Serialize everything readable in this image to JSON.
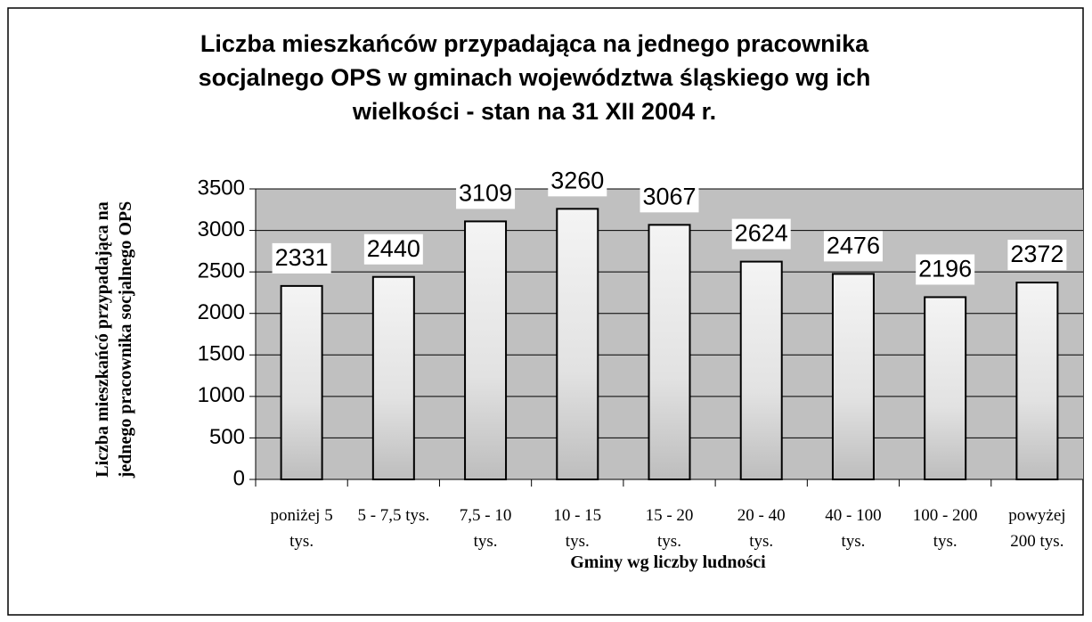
{
  "chart_data": {
    "type": "bar",
    "title": "Liczba mieszkańców przypadająca na jednego pracownika socjalnego OPS w gminach województwa śląskiego wg ich wielkości - stan na 31 XII 2004 r.",
    "y_label": "Liczba mieszkańcó przypadająca na jednego pracownika socjalnego OPS",
    "x_label": "Gminy wg liczby ludności",
    "categories": [
      "poniżej 5 tys.",
      "5 - 7,5 tys.",
      "7,5 - 10 tys.",
      "10 - 15 tys.",
      "15 - 20 tys.",
      "20 - 40 tys.",
      "40 - 100 tys.",
      "100 - 200 tys.",
      "powyżej 200 tys."
    ],
    "values": [
      2331,
      2440,
      3109,
      3260,
      3067,
      2624,
      2476,
      2196,
      2372
    ],
    "color": "#e6e6e6",
    "ylim": [
      0,
      3500
    ],
    "yticks": [
      0,
      500,
      1000,
      1500,
      2000,
      2500,
      3000,
      3500
    ],
    "grid": true
  }
}
